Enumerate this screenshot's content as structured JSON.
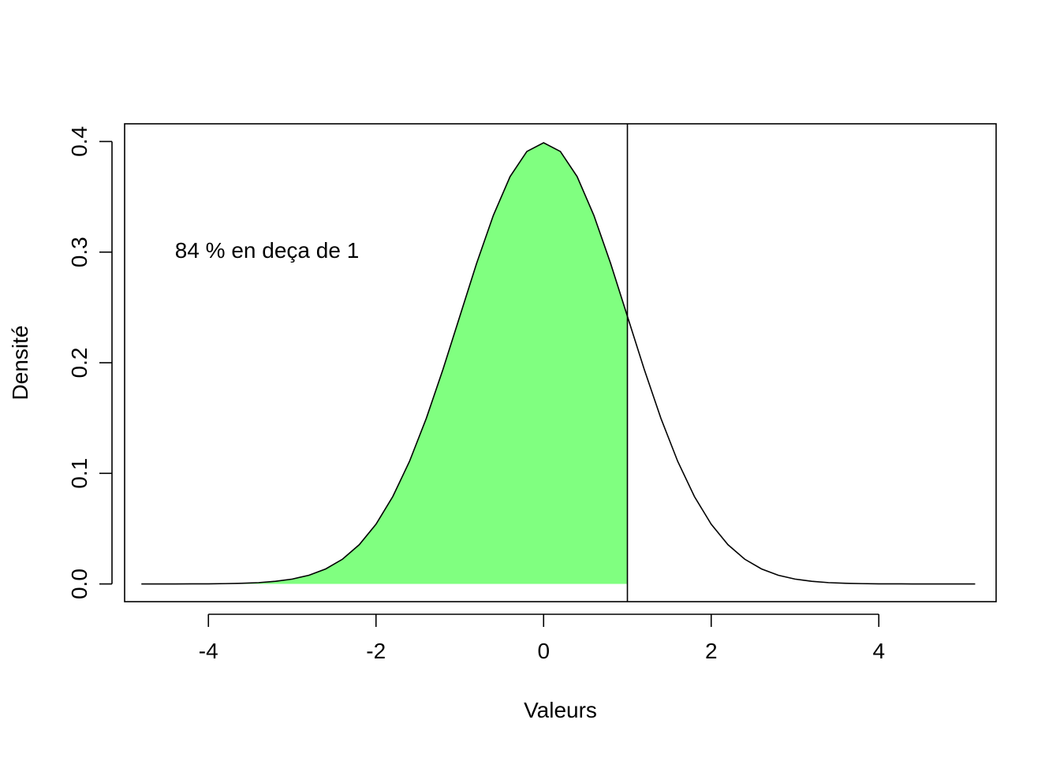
{
  "chart_data": {
    "type": "area",
    "title": "",
    "xlabel": "Valeurs",
    "ylabel": "Densité",
    "xlim": [
      -5.0,
      5.4
    ],
    "ylim": [
      -0.016,
      0.416
    ],
    "x_ticks": [
      -4,
      -2,
      0,
      2,
      4
    ],
    "y_ticks": [
      0.0,
      0.1,
      0.2,
      0.3,
      0.4
    ],
    "x_tick_labels": [
      "-4",
      "-2",
      "0",
      "2",
      "4"
    ],
    "y_tick_labels": [
      "0.0",
      "0.1",
      "0.2",
      "0.3",
      "0.4"
    ],
    "series": [
      {
        "x": [
          -4.8,
          -4.6,
          -4.4,
          -4.2,
          -4.0,
          -3.8,
          -3.6,
          -3.4,
          -3.2,
          -3.0,
          -2.8,
          -2.6,
          -2.4,
          -2.2,
          -2.0,
          -1.8,
          -1.6,
          -1.4,
          -1.2,
          -1.0,
          -0.8,
          -0.6,
          -0.4,
          -0.2,
          0.0,
          0.2,
          0.4,
          0.6,
          0.8,
          1.0,
          1.2,
          1.4,
          1.6,
          1.8,
          2.0,
          2.2,
          2.4,
          2.6,
          2.8,
          3.0,
          3.2,
          3.4,
          3.6,
          3.8,
          4.0,
          4.2,
          4.4,
          4.6,
          4.8,
          5.0,
          5.15
        ],
        "values": [
          0.0,
          0.0,
          0.0,
          0.0001,
          0.0001,
          0.0003,
          0.0006,
          0.0012,
          0.0024,
          0.0044,
          0.0079,
          0.0136,
          0.0224,
          0.0355,
          0.054,
          0.079,
          0.1109,
          0.1497,
          0.1942,
          0.242,
          0.2897,
          0.3332,
          0.3683,
          0.391,
          0.3989,
          0.391,
          0.3683,
          0.3332,
          0.2897,
          0.242,
          0.1942,
          0.1497,
          0.1109,
          0.079,
          0.054,
          0.0355,
          0.0224,
          0.0136,
          0.0079,
          0.0044,
          0.0024,
          0.0012,
          0.0006,
          0.0003,
          0.0001,
          0.0001,
          0.0,
          0.0,
          0.0,
          0.0,
          0.0
        ]
      }
    ],
    "shaded_region": {
      "from": -4.8,
      "to": 1.0,
      "color": "#80ff80"
    },
    "vertical_line": {
      "x": 1.0
    },
    "annotation": {
      "text": "84  % en deça de  1",
      "x": -4.4,
      "y": 0.3
    },
    "grid": false,
    "legend": "none"
  }
}
